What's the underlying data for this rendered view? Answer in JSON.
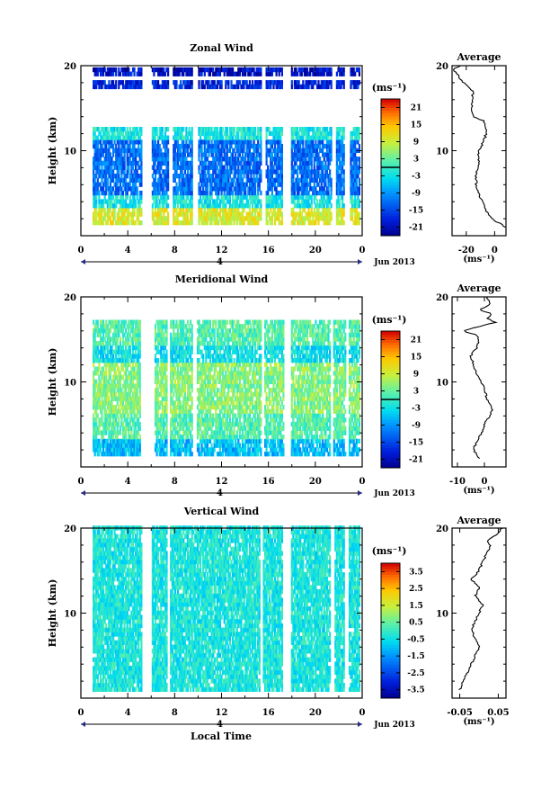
{
  "figure": {
    "date_label": "Jun 2013",
    "day_marker": "4",
    "xlabel": "Local Time",
    "average_title": "Average",
    "units": "(ms⁻¹)"
  },
  "chart_data": [
    {
      "type": "heatmap",
      "title": "Zonal Wind",
      "ylabel": "Height (km)",
      "xlabel": "",
      "x_ticks": [
        "0",
        "4",
        "8",
        "12",
        "16",
        "20",
        "0"
      ],
      "xlim": [
        0,
        24
      ],
      "ylim": [
        0,
        20
      ],
      "y_ticks": [
        10,
        20
      ],
      "colorbar": {
        "units": "(ms⁻¹)",
        "labels": [
          "21",
          "15",
          "9",
          "3",
          "-3",
          "-9",
          "-15",
          "-21"
        ],
        "range": [
          -24,
          24
        ],
        "contour_level": 0
      },
      "data_gaps_hours": [
        [
          5.2,
          6.0
        ],
        [
          7.4,
          7.8
        ],
        [
          9.5,
          9.9
        ],
        [
          15.3,
          15.7
        ],
        [
          17.1,
          17.9
        ],
        [
          21.3,
          21.7
        ],
        [
          22.4,
          22.9
        ]
      ],
      "layers": [
        {
          "z": [
            1,
            3
          ],
          "value": 10
        },
        {
          "z": [
            3,
            4.5
          ],
          "value": -2
        },
        {
          "z": [
            4.5,
            11
          ],
          "value": -12
        },
        {
          "z": [
            11,
            12.5
          ],
          "value": -2
        },
        {
          "z": [
            17,
            18
          ],
          "value": -18
        },
        {
          "z": [
            18.5,
            19.5
          ],
          "value": -20
        }
      ],
      "profile": {
        "xlabel": "(ms⁻¹)",
        "xlim": [
          -30,
          8
        ],
        "x_ticks": [
          "-20",
          "0"
        ],
        "x_tick_values": [
          -20,
          0
        ],
        "z": [
          1,
          1.5,
          2,
          3,
          4,
          5,
          6,
          7,
          8,
          9,
          9.5,
          10,
          11,
          12,
          13,
          13.5,
          14,
          15,
          16,
          17,
          18,
          18.5,
          19,
          19.5,
          20
        ],
        "values": [
          8,
          3,
          -2,
          -6,
          -9,
          -11,
          -13,
          -13,
          -12,
          -11,
          -12,
          -11,
          -8,
          -6,
          -6,
          -8,
          -15,
          -16,
          -16,
          -15,
          -22,
          -25,
          -26,
          -30,
          -24
        ]
      }
    },
    {
      "type": "heatmap",
      "title": "Meridional Wind",
      "ylabel": "Height (km)",
      "xlabel": "",
      "x_ticks": [
        "0",
        "4",
        "8",
        "12",
        "16",
        "20",
        "0"
      ],
      "xlim": [
        0,
        24
      ],
      "ylim": [
        0,
        20
      ],
      "y_ticks": [
        10,
        20
      ],
      "colorbar": {
        "units": "(ms⁻¹)",
        "labels": [
          "21",
          "15",
          "9",
          "3",
          "-3",
          "-9",
          "-15",
          "-21"
        ],
        "range": [
          -24,
          24
        ],
        "contour_level": 0
      },
      "data_gaps_hours": [
        [
          5.0,
          6.2
        ],
        [
          7.3,
          7.6
        ],
        [
          9.4,
          9.8
        ],
        [
          15.3,
          15.6
        ],
        [
          17.2,
          17.8
        ],
        [
          21.2,
          21.5
        ],
        [
          22.5,
          22.8
        ]
      ],
      "layers": [
        {
          "z": [
            1,
            3
          ],
          "value": -6
        },
        {
          "z": [
            3,
            6
          ],
          "value": 2
        },
        {
          "z": [
            6,
            12
          ],
          "value": 5
        },
        {
          "z": [
            12,
            14
          ],
          "value": -3
        },
        {
          "z": [
            14,
            17
          ],
          "value": 2
        }
      ],
      "profile": {
        "xlabel": "(ms⁻¹)",
        "xlim": [
          -12,
          8
        ],
        "x_ticks": [
          "-10",
          "0"
        ],
        "x_tick_values": [
          -10,
          0
        ],
        "z": [
          1,
          2,
          3,
          4,
          5,
          6,
          7,
          8,
          9,
          10,
          11,
          12,
          13,
          14,
          15,
          15.5,
          16,
          16.5,
          17,
          17.5,
          18,
          18.5,
          19,
          20
        ],
        "values": [
          -2,
          -4,
          -3,
          -1,
          0,
          2,
          3,
          1,
          0,
          -1,
          -3,
          -4,
          -5,
          -3,
          -2,
          -3,
          -8,
          -2,
          4,
          1,
          3,
          -2,
          2,
          1
        ]
      }
    },
    {
      "type": "heatmap",
      "title": "Vertical Wind",
      "ylabel": "Height (km)",
      "xlabel": "Local Time",
      "x_ticks": [
        "0",
        "4",
        "8",
        "12",
        "16",
        "20",
        "0"
      ],
      "xlim": [
        0,
        24
      ],
      "ylim": [
        0,
        20
      ],
      "y_ticks": [
        10,
        20
      ],
      "colorbar": {
        "units": "(ms⁻¹)",
        "labels": [
          "3.5",
          "2.5",
          "1.5",
          "0.5",
          "-0.5",
          "-1.5",
          "-2.5",
          "-3.5"
        ],
        "range": [
          -4,
          4
        ],
        "contour_level": null
      },
      "data_gaps_hours": [
        [
          5.1,
          6.0
        ],
        [
          7.3,
          7.6
        ],
        [
          15.2,
          15.5
        ],
        [
          17.1,
          17.8
        ],
        [
          21.2,
          21.6
        ],
        [
          22.4,
          22.8
        ]
      ],
      "layers": [
        {
          "z": [
            0.5,
            20
          ],
          "value": -0.3
        }
      ],
      "profile": {
        "xlabel": "(ms⁻¹)",
        "xlim": [
          -0.07,
          0.07
        ],
        "x_ticks": [
          "-0.05",
          "0.05"
        ],
        "x_tick_values": [
          -0.05,
          0.05
        ],
        "z": [
          1,
          2,
          3,
          4,
          5,
          6,
          7,
          8,
          9,
          10,
          11,
          12,
          13,
          14,
          15,
          16,
          17,
          18,
          18.5,
          19,
          19.5,
          20
        ],
        "values": [
          -0.05,
          -0.04,
          -0.03,
          -0.02,
          -0.01,
          0.0,
          -0.01,
          -0.02,
          -0.01,
          0.0,
          0.01,
          -0.01,
          0.0,
          -0.02,
          0.0,
          0.01,
          0.02,
          0.03,
          0.02,
          0.04,
          0.05,
          0.06
        ]
      }
    }
  ]
}
